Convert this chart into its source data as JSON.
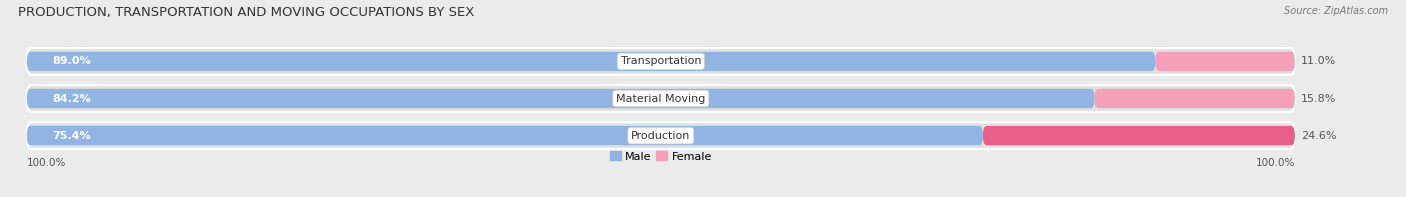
{
  "title": "PRODUCTION, TRANSPORTATION AND MOVING OCCUPATIONS BY SEX",
  "source": "Source: ZipAtlas.com",
  "categories": [
    "Transportation",
    "Material Moving",
    "Production"
  ],
  "male_values": [
    89.0,
    84.2,
    75.4
  ],
  "female_values": [
    11.0,
    15.8,
    24.6
  ],
  "male_color": "#92b4e3",
  "female_color_top": "#f4a0b8",
  "female_color_bottom": "#e8608a",
  "female_colors": [
    "#f4a0b8",
    "#f4a0b8",
    "#e8608a"
  ],
  "bg_color": "#ebebeb",
  "bar_bg_color": "#e0e0e0",
  "title_fontsize": 9.5,
  "label_fontsize": 8,
  "pct_fontsize": 8,
  "axis_label_fontsize": 7.5,
  "figwidth": 14.06,
  "figheight": 1.97,
  "x_left_label": "100.0%",
  "x_right_label": "100.0%"
}
